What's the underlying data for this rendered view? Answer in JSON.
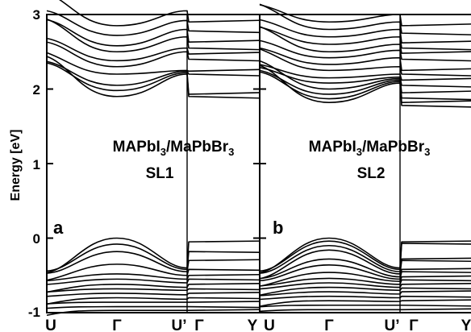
{
  "chart_data": [
    {
      "type": "line",
      "panel": "a",
      "title_line1": "MAPbI3/MaPbBr3",
      "title_line2": "SL1",
      "ylabel": "Energy [eV]",
      "ylim": [
        -1,
        3
      ],
      "yticks": [
        -1,
        0,
        1,
        2,
        3
      ],
      "x_kpoints": [
        "U",
        "Γ",
        "U’",
        "Γ",
        "Y"
      ],
      "conduction_bands": [
        {
          "min_E": 1.9,
          "edge_E": 2.2,
          "flat_E": 1.9
        },
        {
          "min_E": 1.98,
          "edge_E": 2.22,
          "flat_E": 1.93
        },
        {
          "min_E": 2.05,
          "edge_E": 2.24,
          "flat_E": 2.2
        },
        {
          "min_E": 2.2,
          "edge_E": 2.25,
          "flat_E": 2.24
        },
        {
          "min_E": 2.3,
          "edge_E": 2.5,
          "flat_E": 2.4
        },
        {
          "min_E": 2.38,
          "edge_E": 2.55,
          "flat_E": 2.47
        },
        {
          "min_E": 2.5,
          "edge_E": 2.7,
          "flat_E": 2.55
        },
        {
          "min_E": 2.58,
          "edge_E": 2.8,
          "flat_E": 2.63
        },
        {
          "min_E": 2.72,
          "edge_E": 2.92,
          "flat_E": 2.78
        },
        {
          "min_E": 2.85,
          "edge_E": 3.05,
          "flat_E": 2.9
        }
      ],
      "valence_bands": [
        {
          "max_E": 0.0,
          "edge_E": -0.4,
          "flat_E": -0.05
        },
        {
          "max_E": -0.08,
          "edge_E": -0.42,
          "flat_E": -0.18
        },
        {
          "max_E": -0.18,
          "edge_E": -0.45,
          "flat_E": -0.3
        },
        {
          "max_E": -0.35,
          "edge_E": -0.5,
          "flat_E": -0.42
        },
        {
          "max_E": -0.48,
          "edge_E": -0.55,
          "flat_E": -0.5
        },
        {
          "max_E": -0.55,
          "edge_E": -0.6,
          "flat_E": -0.55
        },
        {
          "max_E": -0.62,
          "edge_E": -0.66,
          "flat_E": -0.62
        },
        {
          "max_E": -0.68,
          "edge_E": -0.7,
          "flat_E": -0.68
        },
        {
          "max_E": -0.74,
          "edge_E": -0.76,
          "flat_E": -0.74
        },
        {
          "max_E": -0.8,
          "edge_E": -0.82,
          "flat_E": -0.8
        },
        {
          "max_E": -0.86,
          "edge_E": -0.86,
          "flat_E": -0.86
        },
        {
          "max_E": -0.92,
          "edge_E": -0.92,
          "flat_E": -0.92
        },
        {
          "max_E": -0.97,
          "edge_E": -0.97,
          "flat_E": -0.97
        }
      ]
    },
    {
      "type": "line",
      "panel": "b",
      "title_line1": "MAPbI3/MaPbBr3",
      "title_line2": "SL2",
      "ylim": [
        -1,
        3
      ],
      "x_kpoints": [
        "U",
        "Γ",
        "U’",
        "Γ",
        "Y"
      ],
      "conduction_bands": [
        {
          "min_E": 1.82,
          "edge_E": 2.08,
          "flat_E": 1.78
        },
        {
          "min_E": 1.87,
          "edge_E": 2.1,
          "flat_E": 1.82
        },
        {
          "min_E": 1.93,
          "edge_E": 2.12,
          "flat_E": 1.88
        },
        {
          "min_E": 2.0,
          "edge_E": 2.14,
          "flat_E": 1.95
        },
        {
          "min_E": 2.08,
          "edge_E": 2.16,
          "flat_E": 2.05
        },
        {
          "min_E": 2.15,
          "edge_E": 2.2,
          "flat_E": 2.12
        },
        {
          "min_E": 2.25,
          "edge_E": 2.3,
          "flat_E": 2.2
        },
        {
          "min_E": 2.33,
          "edge_E": 2.42,
          "flat_E": 2.25
        },
        {
          "min_E": 2.42,
          "edge_E": 2.52,
          "flat_E": 2.4
        },
        {
          "min_E": 2.5,
          "edge_E": 2.6,
          "flat_E": 2.48
        },
        {
          "min_E": 2.6,
          "edge_E": 2.7,
          "flat_E": 2.55
        },
        {
          "min_E": 2.7,
          "edge_E": 2.8,
          "flat_E": 2.62
        },
        {
          "min_E": 2.8,
          "edge_E": 2.9,
          "flat_E": 2.75
        },
        {
          "min_E": 2.9,
          "edge_E": 3.0,
          "flat_E": 2.85
        }
      ],
      "valence_bands": [
        {
          "max_E": 0.0,
          "edge_E": -0.4,
          "flat_E": -0.05
        },
        {
          "max_E": -0.04,
          "edge_E": -0.42,
          "flat_E": -0.07
        },
        {
          "max_E": -0.1,
          "edge_E": -0.45,
          "flat_E": -0.28
        },
        {
          "max_E": -0.16,
          "edge_E": -0.48,
          "flat_E": -0.3
        },
        {
          "max_E": -0.28,
          "edge_E": -0.52,
          "flat_E": -0.42
        },
        {
          "max_E": -0.36,
          "edge_E": -0.55,
          "flat_E": -0.45
        },
        {
          "max_E": -0.46,
          "edge_E": -0.58,
          "flat_E": -0.52
        },
        {
          "max_E": -0.54,
          "edge_E": -0.62,
          "flat_E": -0.56
        },
        {
          "max_E": -0.6,
          "edge_E": -0.66,
          "flat_E": -0.62
        },
        {
          "max_E": -0.66,
          "edge_E": -0.7,
          "flat_E": -0.67
        },
        {
          "max_E": -0.72,
          "edge_E": -0.75,
          "flat_E": -0.72
        },
        {
          "max_E": -0.78,
          "edge_E": -0.8,
          "flat_E": -0.78
        },
        {
          "max_E": -0.84,
          "edge_E": -0.85,
          "flat_E": -0.84
        },
        {
          "max_E": -0.9,
          "edge_E": -0.9,
          "flat_E": -0.9
        },
        {
          "max_E": -0.96,
          "edge_E": -0.96,
          "flat_E": -0.96
        }
      ]
    }
  ]
}
